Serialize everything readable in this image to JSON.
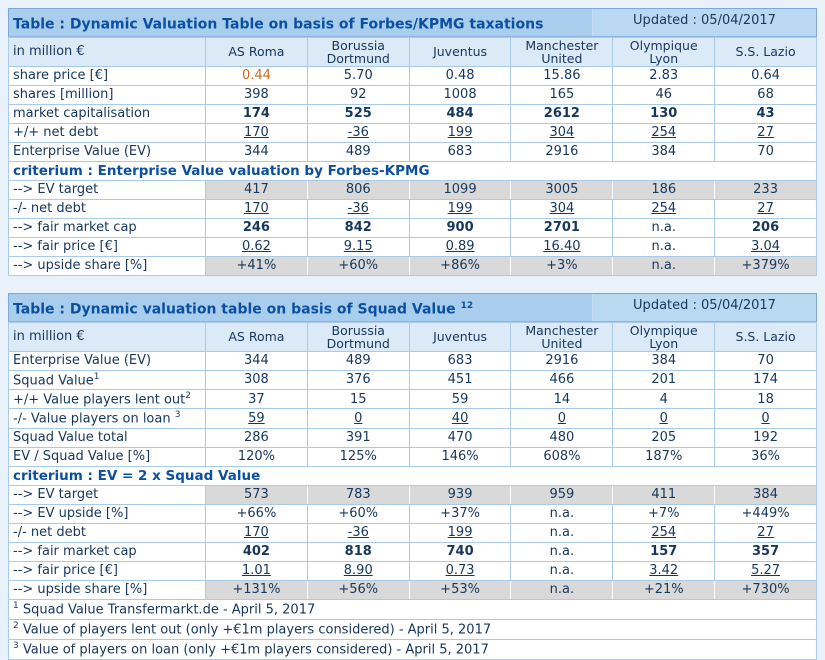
{
  "colors": {
    "page_bg": "#e9f1fa",
    "title_bar_bg": "#a9cdec",
    "updated_bg": "#b9d9f3",
    "header_row_bg": "#dce9f6",
    "grid_line": "#aacbe8",
    "text_navy": "#17375d",
    "title_blue": "#0b50a0",
    "gray_row_bg": "#d9d9d9",
    "accent_value": "#d2691e"
  },
  "table1": {
    "title": "Table : Dynamic Valuation Table on basis of Forbes/KPMG taxations",
    "title_sup": "",
    "updated": "Updated : 05/04/2017",
    "unit_label": "in million €",
    "columns": [
      "AS Roma",
      "Borussia Dortmund",
      "Juventus",
      "Manchester United",
      "Olympique Lyon",
      "S.S. Lazio"
    ],
    "rows": [
      {
        "label": "share price [€]",
        "values": [
          "0.44",
          "5.70",
          "0.48",
          "15.86",
          "2.83",
          "0.64"
        ],
        "accent_indices": [
          0
        ]
      },
      {
        "label": "shares [million]",
        "values": [
          "398",
          "92",
          "1008",
          "165",
          "46",
          "68"
        ]
      },
      {
        "label": "market capitalisation",
        "values": [
          "174",
          "525",
          "484",
          "2612",
          "130",
          "43"
        ],
        "bold": true
      },
      {
        "label": "+/+ net debt",
        "values": [
          "170",
          "-36",
          "199",
          "304",
          "254",
          "27"
        ],
        "underline": true
      },
      {
        "label": "Enterprise Value (EV)",
        "values": [
          "344",
          "489",
          "683",
          "2916",
          "384",
          "70"
        ]
      },
      {
        "section": "criterium : Enterprise Value valuation by Forbes-KPMG"
      },
      {
        "label": "--> EV target",
        "values": [
          "417",
          "806",
          "1099",
          "3005",
          "186",
          "233"
        ],
        "gray": true
      },
      {
        "label": "-/- net debt",
        "values": [
          "170",
          "-36",
          "199",
          "304",
          "254",
          "27"
        ],
        "underline": true
      },
      {
        "label": "--> fair market cap",
        "values": [
          "246",
          "842",
          "900",
          "2701",
          "n.a.",
          "206"
        ],
        "bold": true
      },
      {
        "label": "--> fair price [€]",
        "values": [
          "0.62",
          "9.15",
          "0.89",
          "16.40",
          "n.a.",
          "3.04"
        ],
        "underline": true
      },
      {
        "label": "--> upside share [%]",
        "values": [
          "+41%",
          "+60%",
          "+86%",
          "+3%",
          "n.a.",
          "+379%"
        ],
        "gray": true
      }
    ],
    "footnotes": []
  },
  "table2": {
    "title": "Table : Dynamic valuation table on basis of Squad Value ",
    "title_sup": "12",
    "updated": "Updated : 05/04/2017",
    "unit_label": "in million €",
    "columns": [
      "AS Roma",
      "Borussia Dortmund",
      "Juventus",
      "Manchester United",
      "Olympique Lyon",
      "S.S. Lazio"
    ],
    "rows": [
      {
        "label": "Enterprise Value (EV)",
        "values": [
          "344",
          "489",
          "683",
          "2916",
          "384",
          "70"
        ]
      },
      {
        "label": "Squad Value",
        "label_sup": "1",
        "values": [
          "308",
          "376",
          "451",
          "466",
          "201",
          "174"
        ]
      },
      {
        "label": "+/+ Value players lent out",
        "label_sup": "2",
        "values": [
          "37",
          "15",
          "59",
          "14",
          "4",
          "18"
        ]
      },
      {
        "label": "-/- Value players on loan ",
        "label_sup": "3",
        "values": [
          "59",
          "0",
          "40",
          "0",
          "0",
          "0"
        ],
        "underline": true
      },
      {
        "label": "Squad Value total",
        "values": [
          "286",
          "391",
          "470",
          "480",
          "205",
          "192"
        ]
      },
      {
        "label": "EV / Squad Value [%]",
        "values": [
          "120%",
          "125%",
          "146%",
          "608%",
          "187%",
          "36%"
        ]
      },
      {
        "section": "criterium : EV = 2 x Squad Value"
      },
      {
        "label": "--> EV target",
        "values": [
          "573",
          "783",
          "939",
          "959",
          "411",
          "384"
        ],
        "gray": true
      },
      {
        "label": "--> EV upside [%]",
        "values": [
          "+66%",
          "+60%",
          "+37%",
          "n.a.",
          "+7%",
          "+449%"
        ]
      },
      {
        "label": "-/- net debt",
        "values": [
          "170",
          "-36",
          "199",
          "n.a.",
          "254",
          "27"
        ],
        "underline": true
      },
      {
        "label": "--> fair market cap",
        "values": [
          "402",
          "818",
          "740",
          "n.a.",
          "157",
          "357"
        ],
        "bold": true
      },
      {
        "label": "--> fair price [€]",
        "values": [
          "1.01",
          "8.90",
          "0.73",
          "n.a.",
          "3.42",
          "5.27"
        ],
        "underline": true
      },
      {
        "label": "--> upside share [%]",
        "values": [
          "+131%",
          "+56%",
          "+53%",
          "n.a.",
          "+21%",
          "+730%"
        ],
        "gray": true
      }
    ],
    "footnotes": [
      {
        "sup": "1",
        "text": " Squad Value Transfermarkt.de - April 5, 2017"
      },
      {
        "sup": "2",
        "text": " Value of players lent out (only +€1m players considered) - April 5, 2017"
      },
      {
        "sup": "3",
        "text": " Value of players on loan (only +€1m players considered) - April 5, 2017"
      }
    ]
  }
}
